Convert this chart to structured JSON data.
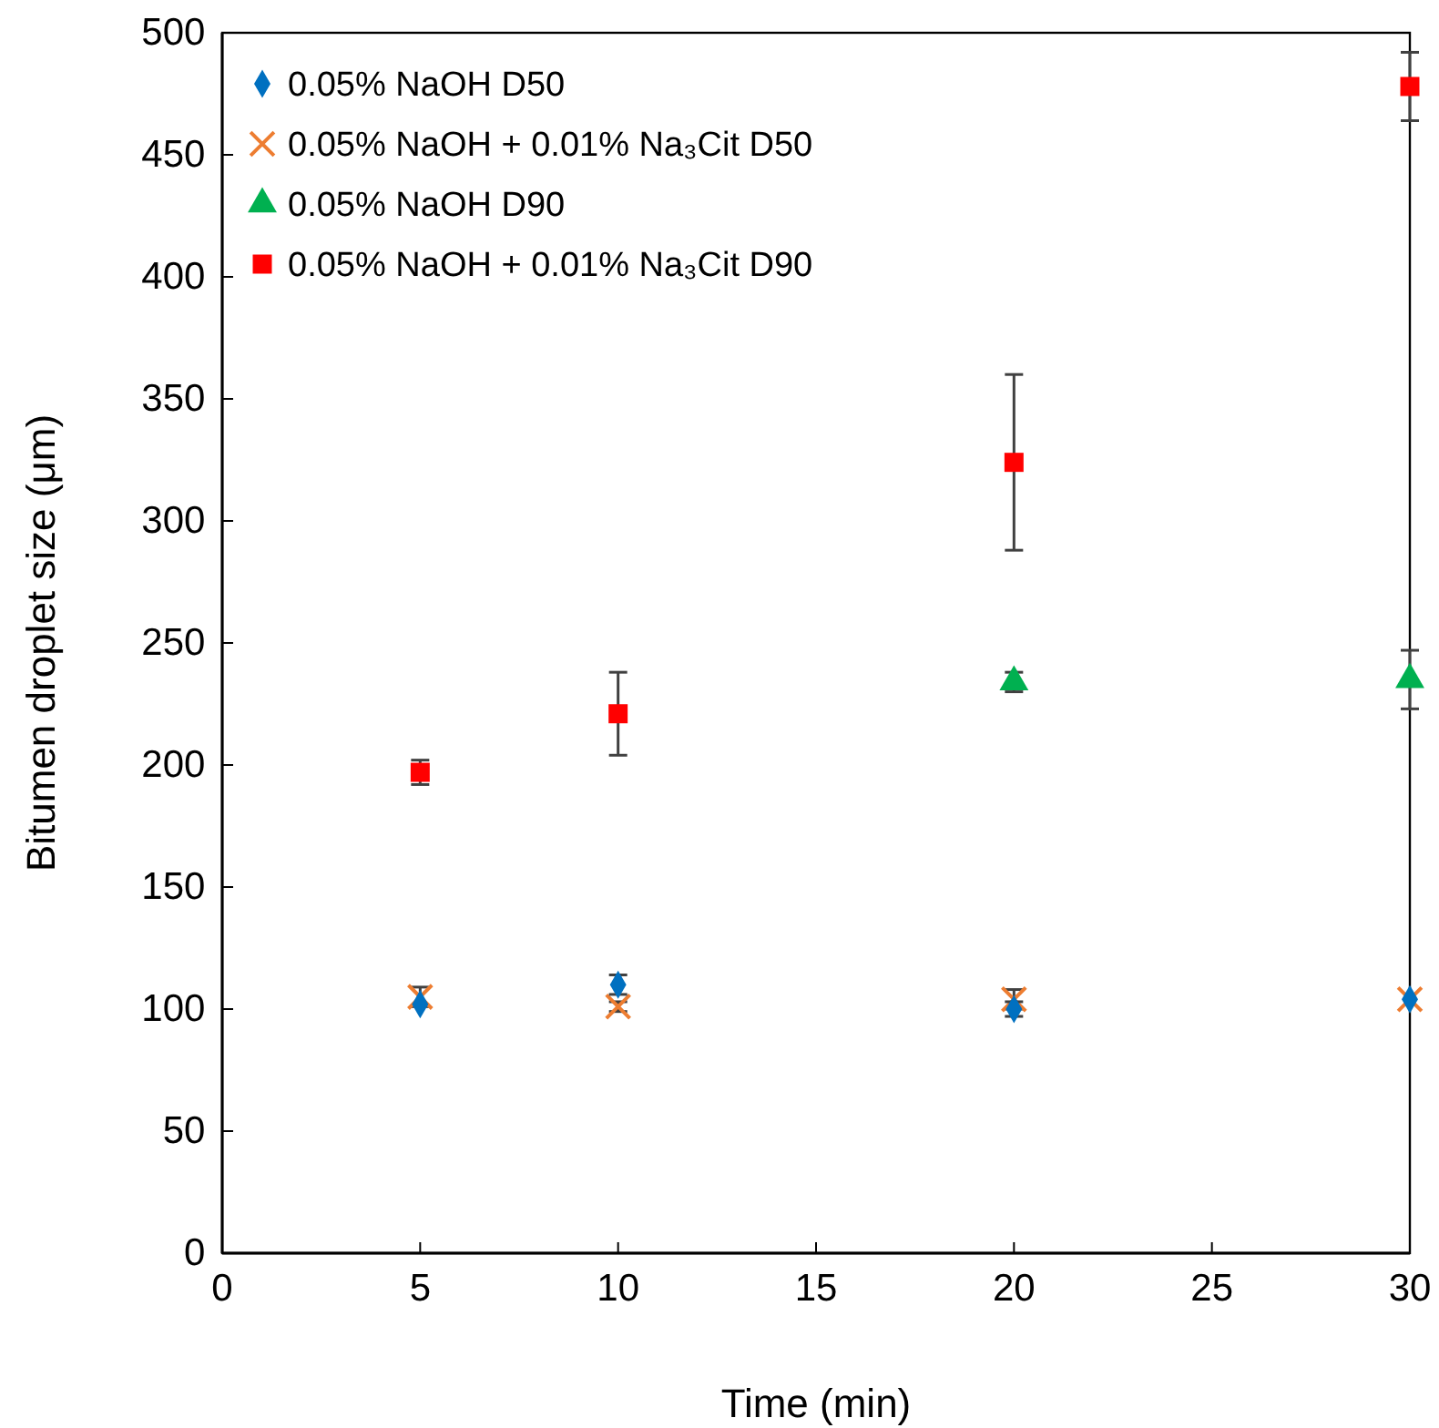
{
  "chart_data": {
    "type": "scatter",
    "xlabel": "Time (min)",
    "ylabel": "Bitumen droplet size (μm)",
    "x": [
      5,
      10,
      20,
      30
    ],
    "xlim": [
      0,
      30
    ],
    "xticks": [
      0,
      5,
      10,
      15,
      20,
      25,
      30
    ],
    "ylim": [
      0,
      500
    ],
    "yticks": [
      0,
      50,
      100,
      150,
      200,
      250,
      300,
      350,
      400,
      450,
      500
    ],
    "grid": false,
    "legend": "top left",
    "series": [
      {
        "name": "0.05% NaOH D50",
        "color": "#0070c0",
        "marker": "diamond",
        "values": [
          102,
          110,
          100,
          104
        ],
        "errors": [
          null,
          4,
          3,
          null
        ]
      },
      {
        "name": "0.05% NaOH + 0.01% Na₃Cit D50",
        "color": "#ed7d31",
        "marker": "cross",
        "values": [
          105,
          101,
          104,
          104
        ],
        "errors": [
          4,
          2,
          4,
          null
        ]
      },
      {
        "name": "0.05% NaOH D90",
        "color": "#00b050",
        "marker": "triangle",
        "values": [
          null,
          null,
          234,
          235
        ],
        "errors": [
          null,
          null,
          4,
          12
        ]
      },
      {
        "name": "0.05% NaOH + 0.01% Na₃Cit D90",
        "color": "#ff0000",
        "marker": "square",
        "values": [
          197,
          221,
          324,
          478
        ],
        "errors": [
          5,
          17,
          36,
          14
        ]
      }
    ]
  }
}
